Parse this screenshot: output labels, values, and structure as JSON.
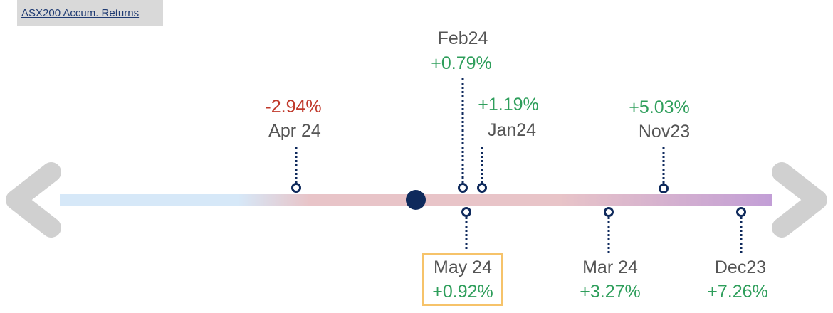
{
  "header": {
    "title": "ASX200 Accum. Returns"
  },
  "events": [
    {
      "month": "Apr 24",
      "change": "-2.94%"
    },
    {
      "month": "Feb24",
      "change": "+0.79%"
    },
    {
      "month": "Jan24",
      "change": "+1.19%"
    },
    {
      "month": "Nov23",
      "change": "+5.03%"
    },
    {
      "month": "May 24",
      "change": "+0.92%"
    },
    {
      "month": "Mar 24",
      "change": "+3.27%"
    },
    {
      "month": "Dec23",
      "change": "+7.26%"
    }
  ],
  "selected": "May 24",
  "colors": {
    "positive": "#2e9e5b",
    "negative": "#c0392b",
    "marker": "#0f2a5c",
    "highlight": "#f6c36a"
  },
  "icons": {
    "prev": "chevron-left-icon",
    "next": "chevron-right-icon"
  }
}
